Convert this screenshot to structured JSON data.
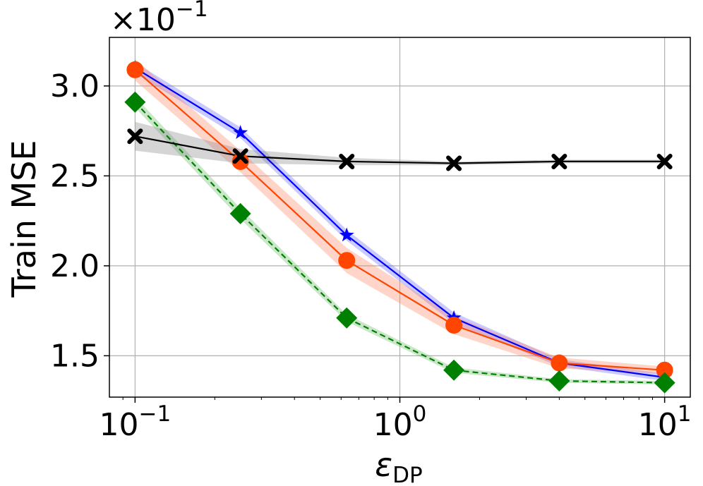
{
  "chart_data": {
    "type": "line",
    "title": "",
    "xlabel": "ε",
    "xlabel_subscript": "DP",
    "ylabel": "Train MSE",
    "y_offset_label": {
      "times": "×",
      "base": "10",
      "exponent": "−1"
    },
    "xscale": "log",
    "xlim": [
      0.08,
      12.5
    ],
    "ylim": [
      1.27,
      3.27
    ],
    "grid": true,
    "legend": "none",
    "x_ticks": [
      {
        "value": 0.1,
        "base": "10",
        "exp": "−1"
      },
      {
        "value": 1,
        "base": "10",
        "exp": "0"
      },
      {
        "value": 10,
        "base": "10",
        "exp": "1"
      }
    ],
    "y_ticks": [
      {
        "value": 1.5,
        "label": "1.5"
      },
      {
        "value": 2.0,
        "label": "2.0"
      },
      {
        "value": 2.5,
        "label": "2.5"
      },
      {
        "value": 3.0,
        "label": "3.0"
      }
    ],
    "x": [
      0.1,
      0.25,
      0.63,
      1.6,
      4.0,
      10.0
    ],
    "series": [
      {
        "color": "#0000ff",
        "marker": "star",
        "linestyle": "solid",
        "band_color": "#6666ff",
        "values": [
          3.1,
          2.74,
          2.17,
          1.71,
          1.46,
          1.38
        ],
        "band": [
          0.03,
          0.03,
          0.03,
          0.03,
          0.02,
          0.02
        ]
      },
      {
        "color": "#ff4500",
        "marker": "circle",
        "linestyle": "solid",
        "band_color": "#ff8866",
        "values": [
          3.09,
          2.58,
          2.03,
          1.67,
          1.46,
          1.42
        ],
        "band": [
          0.06,
          0.06,
          0.07,
          0.05,
          0.03,
          0.02
        ]
      },
      {
        "color": "#008000",
        "marker": "diamond",
        "linestyle": "dashed",
        "band_color": "#66bb66",
        "values": [
          2.91,
          2.29,
          1.71,
          1.42,
          1.36,
          1.35
        ],
        "band": [
          0.03,
          0.03,
          0.02,
          0.015,
          0.01,
          0.01
        ]
      },
      {
        "color": "#000000",
        "marker": "x",
        "linestyle": "solid",
        "band_color": "#888888",
        "values": [
          2.72,
          2.61,
          2.58,
          2.57,
          2.58,
          2.58
        ],
        "band": [
          0.08,
          0.04,
          0.02,
          0.01,
          0.01,
          0.01
        ]
      }
    ]
  }
}
